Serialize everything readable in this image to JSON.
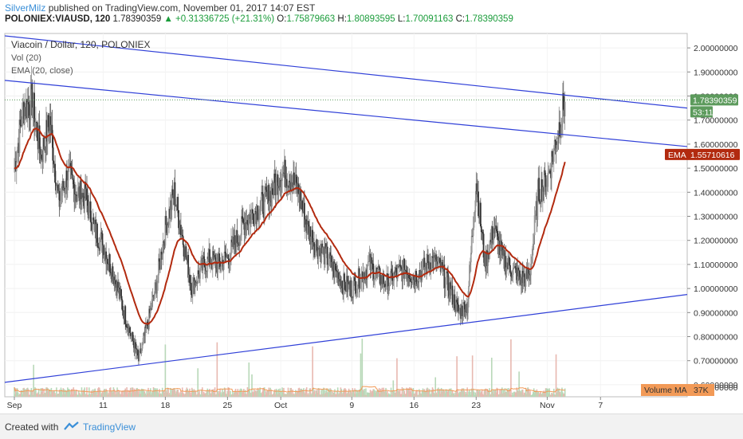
{
  "header": {
    "author": "SilverMilz",
    "published": "published on TradingView.com, November 01, 2017 14:07 EST",
    "symbol": "POLONIEX:VIAUSD, 120",
    "last": "1.78390359",
    "change": "▲ +0.31336725 (+21.31%)",
    "o_label": "O:",
    "o_value": "1.75879663",
    "h_label": "H:",
    "h_value": "1.80893595",
    "l_label": "L:",
    "l_value": "1.70091163",
    "c_label": "C:",
    "c_value": "1.78390359"
  },
  "legend": {
    "title": "Viacoin / Dollar, 120, POLONIEX",
    "vol": "Vol (20)",
    "ema": "EMA (20, close)"
  },
  "footer": {
    "created": "Created with",
    "brand": "TradingView"
  },
  "colors": {
    "ema": "#b22a0f",
    "trend": "#3040d8",
    "bull": "#7a7a7a",
    "bear": "#3a3a3a",
    "price_tag": "#5d9b5d",
    "ema_tag": "#b22a0f",
    "vol_ma_tag": "#f29a57"
  },
  "chart_data": {
    "type": "candlestick",
    "title": "Viacoin / Dollar, 120, POLONIEX",
    "y_axis": {
      "range": [
        0.55,
        2.06
      ],
      "ticks": [
        "0.60000000",
        "0.70000000",
        "0.80000000",
        "0.90000000",
        "1.00000000",
        "1.10000000",
        "1.20000000",
        "1.30000000",
        "1.40000000",
        "1.50000000",
        "1.60000000",
        "1.70000000",
        "1.80000000",
        "1.90000000",
        "2.00000000"
      ],
      "bottom_label": "0.50000000"
    },
    "x_axis": {
      "range_days": "Sep 1 - Nov 9",
      "tick_labels": [
        "Sep",
        "11",
        "18",
        "25",
        "Oct",
        "9",
        "16",
        "23",
        "Nov",
        "7"
      ]
    },
    "price_close_approx": {
      "x_days": [
        1,
        2,
        3,
        4,
        5,
        6,
        7,
        8,
        9,
        10,
        11,
        12,
        13,
        14,
        15,
        16,
        17,
        18,
        19,
        20,
        21,
        22,
        23,
        24,
        25,
        26,
        27,
        28,
        29,
        30,
        31,
        32,
        33,
        34,
        35,
        36,
        37,
        38,
        39,
        40,
        41,
        42,
        43,
        44,
        45,
        46,
        47,
        48,
        49,
        50,
        51,
        52,
        53,
        54,
        55,
        56,
        57,
        58,
        59,
        60,
        61,
        62,
        63
      ],
      "values": [
        1.5,
        1.75,
        1.78,
        1.55,
        1.7,
        1.35,
        1.48,
        1.4,
        1.38,
        1.25,
        1.18,
        1.08,
        0.95,
        0.82,
        0.7,
        0.85,
        1.02,
        1.25,
        1.4,
        1.2,
        1.0,
        1.08,
        1.12,
        1.1,
        1.13,
        1.2,
        1.28,
        1.32,
        1.35,
        1.4,
        1.48,
        1.47,
        1.4,
        1.25,
        1.18,
        1.14,
        1.08,
        1.02,
        1.0,
        1.05,
        1.1,
        1.05,
        1.02,
        1.06,
        1.08,
        1.05,
        1.08,
        1.12,
        1.08,
        1.0,
        0.9,
        0.93,
        1.45,
        1.1,
        1.25,
        1.12,
        1.08,
        1.04,
        1.05,
        1.4,
        1.45,
        1.62,
        1.78
      ]
    },
    "ema_last": "1.55710616",
    "price_last": "1.78390359",
    "countdown": "53:11",
    "volume_ma_label": "Volume MA",
    "volume_ma_value": "37K",
    "trendlines": [
      {
        "name": "upper-channel",
        "from_value": 2.05,
        "to_value": 1.75
      },
      {
        "name": "resistance",
        "from_value": 1.865,
        "to_value": 1.59
      },
      {
        "name": "support",
        "from_value": 0.61,
        "to_value": 0.975
      }
    ]
  }
}
